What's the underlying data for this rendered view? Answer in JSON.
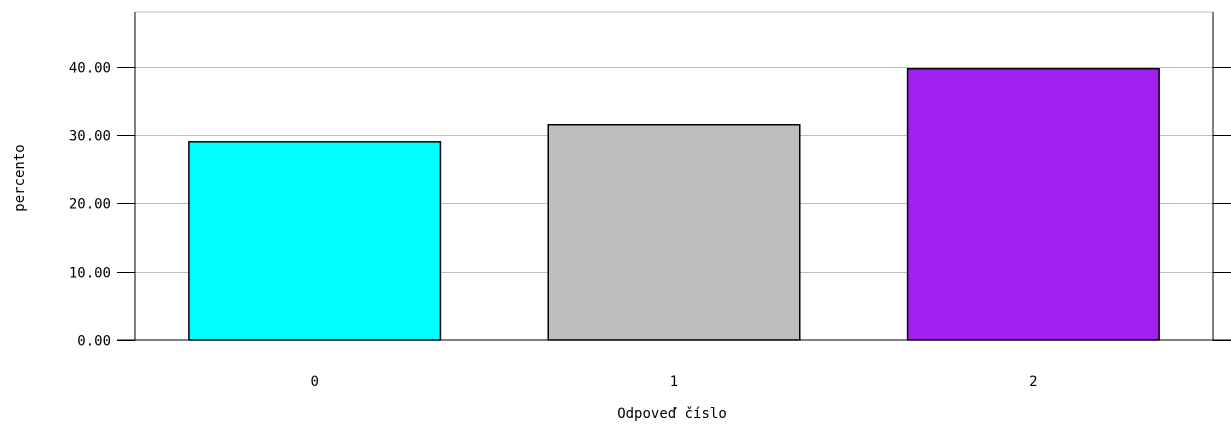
{
  "chart_data": {
    "type": "bar",
    "categories": [
      "0",
      "1",
      "2"
    ],
    "values": [
      29.0,
      31.5,
      39.7
    ],
    "title": "",
    "xlabel": "Odpoveď číslo",
    "ylabel": "percento",
    "ylim": [
      0,
      48
    ],
    "yticks": [
      0,
      10,
      20,
      30,
      40
    ],
    "ytick_labels": [
      "0.00",
      "10.00",
      "20.00",
      "30.00",
      "40.00"
    ],
    "grid": true,
    "legend": "none",
    "colors": [
      "#00FFFF",
      "#BEBEBE",
      "#A020F0"
    ],
    "bar_edge_color": "#000000",
    "grid_color": "#BEBEBE"
  }
}
